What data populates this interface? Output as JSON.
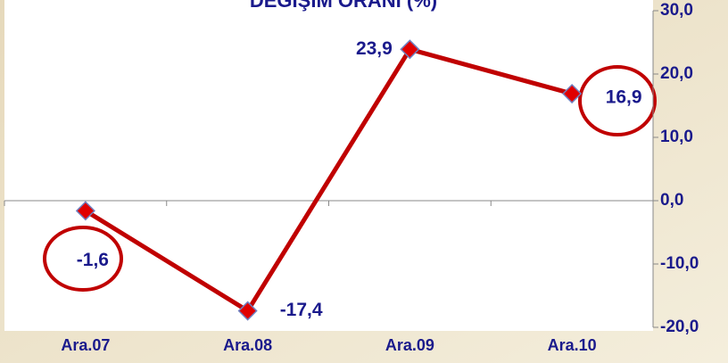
{
  "chart_data": {
    "type": "line",
    "title": "DEĞİŞİM ORANI (%)",
    "categories": [
      "Ara.07",
      "Ara.08",
      "Ara.09",
      "Ara.10"
    ],
    "series": [
      {
        "color": "#c00000",
        "values": [
          -1.6,
          -17.4,
          23.9,
          16.9
        ],
        "value_labels": [
          "-1,6",
          "-17,4",
          "23,9",
          "16,9"
        ]
      }
    ],
    "ylim": [
      -20,
      30
    ],
    "yticks": [
      {
        "value": -20,
        "label": "-20,0"
      },
      {
        "value": -10,
        "label": "-10,0"
      },
      {
        "value": 0,
        "label": "0,0"
      },
      {
        "value": 10,
        "label": "10,0"
      },
      {
        "value": 20,
        "label": "20,0"
      },
      {
        "value": 30,
        "label": "30,0"
      }
    ]
  }
}
